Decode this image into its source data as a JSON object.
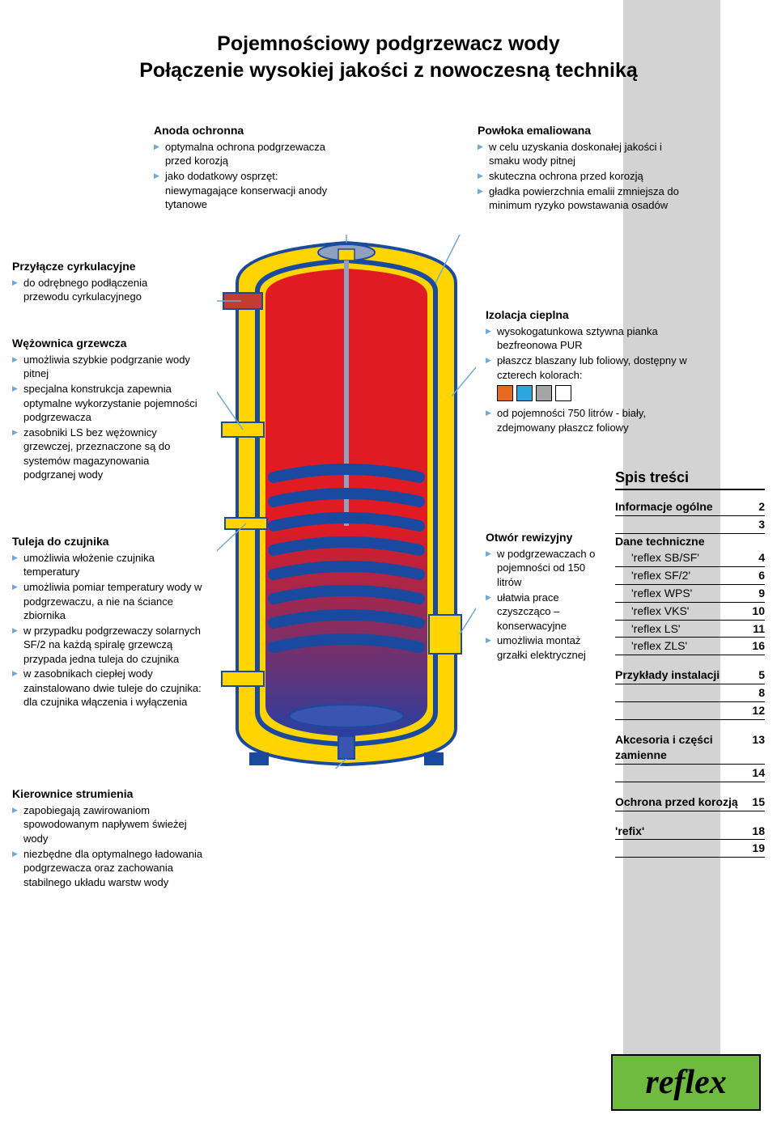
{
  "title_line1": "Pojemnościowy podgrzewacz wody",
  "title_line2": "Połączenie wysokiej jakości z nowoczesną techniką",
  "stripe_color": "#d3d3d3",
  "callouts": {
    "anoda": {
      "heading": "Anoda ochronna",
      "items": [
        "optymalna ochrona podgrzewacza przed korozją",
        "jako dodatkowy osprzęt: niewymagające konserwacji anody tytanowe"
      ]
    },
    "powloka": {
      "heading": "Powłoka emaliowana",
      "items": [
        "w celu uzyskania doskonałej jakości i smaku wody pitnej",
        "skuteczna ochrona przed korozją",
        "gładka powierzchnia emalii zmniejsza do minimum ryzyko powstawania osadów"
      ]
    },
    "przylacze": {
      "heading": "Przyłącze cyrkulacyjne",
      "items": [
        "do odrębnego podłączenia przewodu cyrkulacyjnego"
      ]
    },
    "wezownica": {
      "heading": "Wężownica grzewcza",
      "items": [
        "umożliwia szybkie podgrzanie wody pitnej",
        "specjalna konstrukcja zapewnia optymalne wykorzystanie pojemności podgrzewacza",
        "zasobniki LS bez wężownicy grzewczej, przeznaczone są do systemów magazynowania podgrzanej wody"
      ]
    },
    "tuleja": {
      "heading": "Tuleja do czujnika",
      "items": [
        "umożliwia włożenie czujnika temperatury",
        "umożliwia pomiar temperatury wody w podgrzewaczu, a nie na ściance zbiornika",
        "w przypadku podgrzewaczy solarnych SF/2 na każdą spiralę grzewczą przypada jedna tuleja do czujnika",
        "w zasobnikach ciepłej wody zainstalowano dwie tuleje do czujnika: dla czujnika włączenia i wyłączenia"
      ]
    },
    "kierownice": {
      "heading": "Kierownice strumienia",
      "items": [
        "zapobiegają zawirowaniom spowodowanym napływem świeżej wody",
        "niezbędne dla optymalnego ładowania podgrzewacza oraz zachowania stabilnego układu warstw wody"
      ]
    },
    "izolacja": {
      "heading": "Izolacja cieplna",
      "items": [
        "wysokogatunkowa sztywna pianka bezfreonowa PUR",
        "płaszcz blaszany lub foliowy, dostępny w czterech kolorach:"
      ],
      "swatches": [
        "#e96a1f",
        "#2aa6e0",
        "#a5a5a5",
        "#ffffff"
      ],
      "items2": [
        "od pojemności 750 litrów - biały, zdejmowany płaszcz foliowy"
      ]
    },
    "otwor": {
      "heading": "Otwór rewizyjny",
      "items": [
        "w podgrzewaczach o pojemności od 150 litrów",
        "ułatwia prace czyszcząco – konserwacyjne",
        "umożliwia montaż grzałki elektrycznej"
      ]
    }
  },
  "toc": {
    "heading": "Spis treści",
    "items": [
      {
        "type": "row",
        "label": "Informacje ogólne",
        "page": "2"
      },
      {
        "type": "row",
        "label": "",
        "page": "3"
      },
      {
        "type": "section",
        "label": "Dane techniczne"
      },
      {
        "type": "sub",
        "label": "'reflex SB/SF'",
        "page": "4"
      },
      {
        "type": "sub",
        "label": "'reflex SF/2'",
        "page": "6"
      },
      {
        "type": "sub",
        "label": "'reflex WPS'",
        "page": "9"
      },
      {
        "type": "sub",
        "label": "'reflex VKS'",
        "page": "10"
      },
      {
        "type": "sub",
        "label": "'reflex LS'",
        "page": "11"
      },
      {
        "type": "sub",
        "label": "'reflex ZLS'",
        "page": "16"
      },
      {
        "type": "gap"
      },
      {
        "type": "row",
        "label": "Przykłady instalacji",
        "page": "5"
      },
      {
        "type": "row",
        "label": "",
        "page": "8"
      },
      {
        "type": "row",
        "label": "",
        "page": "12"
      },
      {
        "type": "gap"
      },
      {
        "type": "row",
        "label": "Akcesoria i części zamienne",
        "page": "13"
      },
      {
        "type": "row",
        "label": "",
        "page": "14"
      },
      {
        "type": "gap"
      },
      {
        "type": "row",
        "label": "Ochrona przed korozją",
        "page": "15"
      },
      {
        "type": "gap"
      },
      {
        "type": "row",
        "label": "'refix'",
        "page": "18"
      },
      {
        "type": "row",
        "label": "",
        "page": "19"
      }
    ]
  },
  "logo_text": "reflex",
  "logo_bg": "#6fbb3f",
  "diagram": {
    "outer_shell": "#ffd400",
    "inner_contour": "#1a4aa0",
    "inner_fill_top": "#e01b24",
    "inner_fill_bottom": "#2a3fa0",
    "coil": "#2a3fa0",
    "pipe": "#c43c2f"
  }
}
